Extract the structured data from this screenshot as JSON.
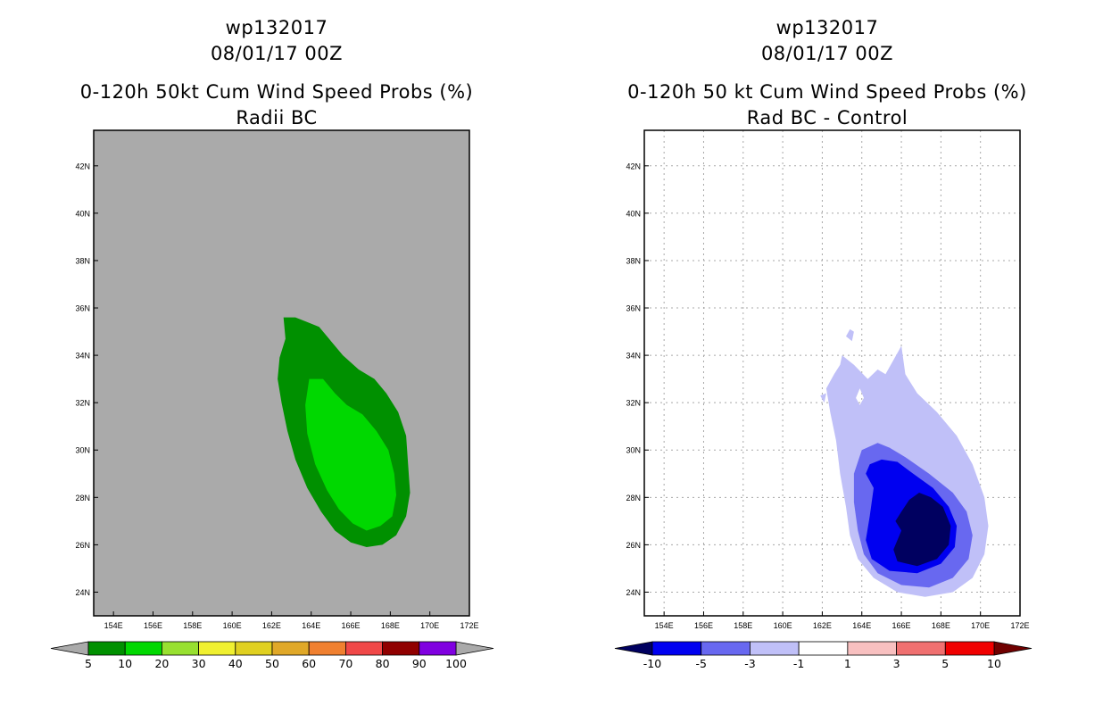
{
  "chart_data": [
    {
      "type": "filled-contour-map",
      "title": [
        "wp132017",
        "08/01/17 00Z",
        "0-120h 50kt Cum Wind Speed Probs (%)",
        "Radii BC"
      ],
      "xlim": [
        153,
        172
      ],
      "ylim": [
        23,
        43.5
      ],
      "x_ticks": [
        154,
        156,
        158,
        160,
        162,
        164,
        166,
        168,
        170,
        172
      ],
      "x_tick_labels": [
        "154E",
        "156E",
        "158E",
        "160E",
        "162E",
        "164E",
        "166E",
        "168E",
        "170E",
        "172E"
      ],
      "y_ticks": [
        24,
        26,
        28,
        30,
        32,
        34,
        36,
        38,
        40,
        42
      ],
      "y_tick_labels": [
        "24N",
        "26N",
        "28N",
        "30N",
        "32N",
        "34N",
        "36N",
        "38N",
        "40N",
        "42N"
      ],
      "grid": false,
      "background_color": "#aaaaaa",
      "colorbar": {
        "labels": [
          "5",
          "10",
          "20",
          "30",
          "40",
          "50",
          "60",
          "70",
          "80",
          "90",
          "100"
        ],
        "colors": [
          "#009000",
          "#00d800",
          "#98e030",
          "#f0f030",
          "#e0d020",
          "#e0a828",
          "#f08030",
          "#f04848",
          "#900000",
          "#8000e0"
        ],
        "extend_colors": [
          "#aaaaaa",
          "#aaaaaa"
        ]
      },
      "contours": [
        {
          "range": "5-10",
          "color": "#009000",
          "polygon": [
            [
              162.6,
              35.6
            ],
            [
              163.2,
              35.6
            ],
            [
              163.8,
              35.4
            ],
            [
              164.4,
              35.2
            ],
            [
              165.0,
              34.6
            ],
            [
              165.6,
              34.0
            ],
            [
              166.4,
              33.4
            ],
            [
              167.2,
              33.0
            ],
            [
              167.8,
              32.4
            ],
            [
              168.4,
              31.6
            ],
            [
              168.8,
              30.6
            ],
            [
              168.9,
              29.4
            ],
            [
              169.0,
              28.2
            ],
            [
              168.8,
              27.2
            ],
            [
              168.3,
              26.4
            ],
            [
              167.6,
              26.0
            ],
            [
              166.8,
              25.9
            ],
            [
              166.0,
              26.1
            ],
            [
              165.2,
              26.6
            ],
            [
              164.5,
              27.4
            ],
            [
              163.8,
              28.4
            ],
            [
              163.2,
              29.6
            ],
            [
              162.8,
              30.8
            ],
            [
              162.5,
              32.0
            ],
            [
              162.3,
              33.0
            ],
            [
              162.4,
              33.9
            ],
            [
              162.7,
              34.7
            ]
          ]
        },
        {
          "range": "10-20",
          "color": "#00d800",
          "polygon": [
            [
              163.9,
              33.0
            ],
            [
              164.6,
              33.0
            ],
            [
              165.2,
              32.4
            ],
            [
              165.8,
              31.9
            ],
            [
              166.6,
              31.5
            ],
            [
              167.3,
              30.8
            ],
            [
              167.9,
              30.0
            ],
            [
              168.2,
              29.0
            ],
            [
              168.3,
              28.1
            ],
            [
              168.1,
              27.2
            ],
            [
              167.5,
              26.8
            ],
            [
              166.8,
              26.6
            ],
            [
              166.1,
              26.9
            ],
            [
              165.4,
              27.5
            ],
            [
              164.8,
              28.3
            ],
            [
              164.2,
              29.4
            ],
            [
              163.8,
              30.7
            ],
            [
              163.7,
              31.9
            ]
          ]
        }
      ]
    },
    {
      "type": "filled-contour-map",
      "title": [
        "wp132017",
        "08/01/17 00Z",
        "0-120h 50 kt Cum Wind Speed Probs (%)",
        "Rad BC - Control"
      ],
      "xlim": [
        153,
        172
      ],
      "ylim": [
        23,
        43.5
      ],
      "x_ticks": [
        154,
        156,
        158,
        160,
        162,
        164,
        166,
        168,
        170,
        172
      ],
      "x_tick_labels": [
        "154E",
        "156E",
        "158E",
        "160E",
        "162E",
        "164E",
        "166E",
        "168E",
        "170E",
        "172E"
      ],
      "y_ticks": [
        24,
        26,
        28,
        30,
        32,
        34,
        36,
        38,
        40,
        42
      ],
      "y_tick_labels": [
        "24N",
        "26N",
        "28N",
        "30N",
        "32N",
        "34N",
        "36N",
        "38N",
        "40N",
        "42N"
      ],
      "grid": true,
      "background_color": "#ffffff",
      "colorbar": {
        "labels": [
          "-10",
          "-5",
          "-3",
          "-1",
          "1",
          "3",
          "5",
          "10"
        ],
        "colors": [
          "#0000f0",
          "#6868f0",
          "#c0c0f8",
          "#ffffff",
          "#f8c0c0",
          "#f07070",
          "#f00000"
        ],
        "extend_colors": [
          "#000060",
          "#700000"
        ]
      },
      "contours": [
        {
          "range": "-3 to -1",
          "color": "#c0c0f8",
          "polygon": [
            [
              163.0,
              34.0
            ],
            [
              163.6,
              33.6
            ],
            [
              164.3,
              33.0
            ],
            [
              164.8,
              33.4
            ],
            [
              165.2,
              33.2
            ],
            [
              165.6,
              33.8
            ],
            [
              166.0,
              34.4
            ],
            [
              166.2,
              33.2
            ],
            [
              166.8,
              32.4
            ],
            [
              167.8,
              31.6
            ],
            [
              168.8,
              30.6
            ],
            [
              169.6,
              29.4
            ],
            [
              170.2,
              28.0
            ],
            [
              170.4,
              26.8
            ],
            [
              170.2,
              25.6
            ],
            [
              169.6,
              24.6
            ],
            [
              168.6,
              24.0
            ],
            [
              167.2,
              23.8
            ],
            [
              165.8,
              24.0
            ],
            [
              164.6,
              24.6
            ],
            [
              163.8,
              25.4
            ],
            [
              163.4,
              26.4
            ],
            [
              163.2,
              27.6
            ],
            [
              162.9,
              29.0
            ],
            [
              162.7,
              30.4
            ],
            [
              162.4,
              31.6
            ],
            [
              162.2,
              32.6
            ],
            [
              162.6,
              33.2
            ],
            [
              162.9,
              33.6
            ]
          ],
          "holes": [
            [
              [
                163.7,
                32.2
              ],
              [
                163.9,
                32.6
              ],
              [
                164.1,
                32.2
              ],
              [
                163.9,
                31.9
              ]
            ]
          ]
        },
        {
          "range": "-3 to -1",
          "color": "#c0c0f8",
          "polygon": [
            [
              161.9,
              32.3
            ],
            [
              162.2,
              32.4
            ],
            [
              162.1,
              32.0
            ]
          ]
        },
        {
          "range": "-3 to -1",
          "color": "#c0c0f8",
          "polygon": [
            [
              163.2,
              34.8
            ],
            [
              163.4,
              35.1
            ],
            [
              163.6,
              35.0
            ],
            [
              163.5,
              34.6
            ]
          ]
        },
        {
          "range": "-5 to -3",
          "color": "#6868f0",
          "polygon": [
            [
              164.0,
              30.0
            ],
            [
              164.8,
              30.3
            ],
            [
              165.4,
              30.1
            ],
            [
              166.2,
              29.7
            ],
            [
              167.4,
              29.0
            ],
            [
              168.6,
              28.2
            ],
            [
              169.3,
              27.4
            ],
            [
              169.6,
              26.4
            ],
            [
              169.4,
              25.4
            ],
            [
              168.6,
              24.6
            ],
            [
              167.4,
              24.2
            ],
            [
              166.0,
              24.3
            ],
            [
              164.8,
              24.8
            ],
            [
              164.1,
              25.6
            ],
            [
              163.8,
              26.6
            ],
            [
              163.6,
              27.8
            ],
            [
              163.6,
              29.0
            ]
          ]
        },
        {
          "range": "-10 to -5",
          "color": "#0000f0",
          "polygon": [
            [
              164.4,
              29.4
            ],
            [
              165.0,
              29.6
            ],
            [
              165.8,
              29.5
            ],
            [
              166.6,
              29.0
            ],
            [
              167.6,
              28.4
            ],
            [
              168.4,
              27.6
            ],
            [
              168.8,
              26.8
            ],
            [
              168.7,
              25.9
            ],
            [
              168.0,
              25.2
            ],
            [
              166.8,
              24.8
            ],
            [
              165.4,
              24.9
            ],
            [
              164.5,
              25.4
            ],
            [
              164.2,
              26.2
            ],
            [
              164.4,
              27.2
            ],
            [
              164.6,
              28.4
            ],
            [
              164.2,
              29.0
            ]
          ]
        },
        {
          "range": "< -10",
          "color": "#000060",
          "polygon": [
            [
              166.0,
              27.4
            ],
            [
              166.4,
              27.9
            ],
            [
              166.9,
              28.2
            ],
            [
              167.5,
              28.0
            ],
            [
              168.1,
              27.6
            ],
            [
              168.5,
              26.8
            ],
            [
              168.4,
              26.0
            ],
            [
              167.8,
              25.4
            ],
            [
              166.8,
              25.1
            ],
            [
              165.8,
              25.3
            ],
            [
              165.6,
              25.8
            ],
            [
              166.0,
              26.6
            ],
            [
              165.7,
              27.0
            ]
          ]
        }
      ]
    }
  ]
}
